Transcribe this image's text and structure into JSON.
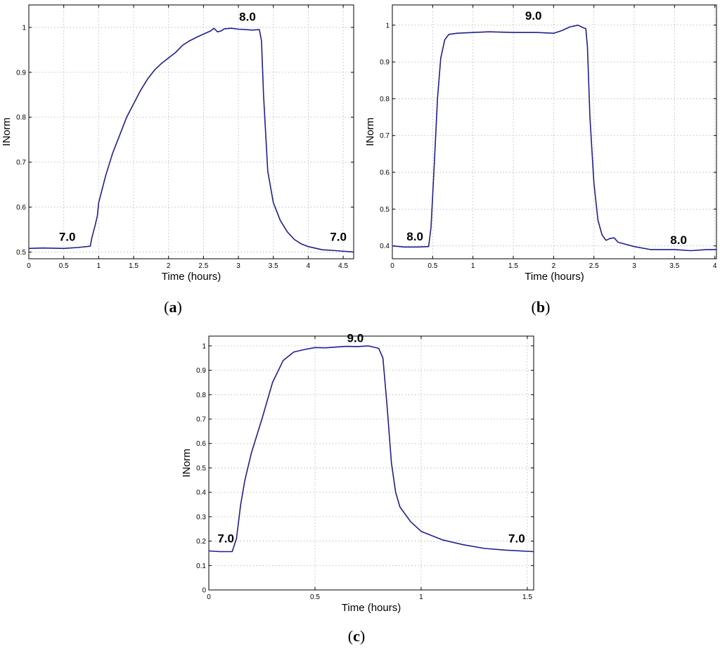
{
  "chart_data": [
    {
      "type": "line",
      "panel_label": "a",
      "xlabel": "Time (hours)",
      "ylabel": "INorm",
      "xlim": [
        0,
        4.65
      ],
      "ylim": [
        0.485,
        1.05
      ],
      "xticks": [
        0,
        0.5,
        1,
        1.5,
        2,
        2.5,
        3,
        3.5,
        4,
        4.5
      ],
      "xtick_labels": [
        "0",
        "0.5",
        "1",
        "1.5",
        "2",
        "2.5",
        "3",
        "3.5",
        "4",
        "4.5"
      ],
      "yticks": [
        0.5,
        0.6,
        0.7,
        0.8,
        0.9,
        1
      ],
      "ytick_labels": [
        "0.5",
        "0.6",
        "0.7",
        "0.8",
        "0.9",
        "1"
      ],
      "grid": true,
      "color": "#1f1f8f",
      "series": [
        {
          "x": [
            0,
            0.2,
            0.5,
            0.7,
            0.88,
            0.9,
            0.95,
            0.98,
            1.0,
            1.05,
            1.1,
            1.2,
            1.3,
            1.4,
            1.5,
            1.6,
            1.7,
            1.8,
            1.9,
            2.0,
            2.1,
            2.2,
            2.3,
            2.4,
            2.5,
            2.6,
            2.65,
            2.7,
            2.75,
            2.8,
            2.9,
            3.0,
            3.1,
            3.2,
            3.3,
            3.33,
            3.36,
            3.42,
            3.5,
            3.6,
            3.7,
            3.8,
            3.9,
            4.0,
            4.2,
            4.4,
            4.65
          ],
          "y": [
            0.508,
            0.509,
            0.508,
            0.51,
            0.513,
            0.53,
            0.56,
            0.58,
            0.61,
            0.64,
            0.67,
            0.72,
            0.76,
            0.8,
            0.83,
            0.86,
            0.885,
            0.905,
            0.92,
            0.932,
            0.944,
            0.96,
            0.97,
            0.978,
            0.985,
            0.992,
            0.998,
            0.99,
            0.992,
            0.997,
            0.998,
            0.996,
            0.995,
            0.994,
            0.995,
            0.97,
            0.85,
            0.68,
            0.61,
            0.57,
            0.545,
            0.528,
            0.518,
            0.512,
            0.505,
            0.503,
            0.5
          ]
        }
      ],
      "annotations": [
        {
          "text": "7.0",
          "x": 0.55,
          "y": 0.525
        },
        {
          "text": "8.0",
          "x": 3.13,
          "y": 1.015
        },
        {
          "text": "7.0",
          "x": 4.43,
          "y": 0.525
        }
      ]
    },
    {
      "type": "line",
      "panel_label": "b",
      "xlabel": "Time (hours)",
      "ylabel": "INorm",
      "xlim": [
        0,
        4.02
      ],
      "ylim": [
        0.365,
        1.055
      ],
      "xticks": [
        0,
        0.5,
        1,
        1.5,
        2,
        2.5,
        3,
        3.5,
        4
      ],
      "xtick_labels": [
        "0",
        "0.5",
        "1",
        "1.5",
        "2",
        "2.5",
        "3",
        "3.5",
        "4"
      ],
      "yticks": [
        0.4,
        0.5,
        0.6,
        0.7,
        0.8,
        0.9,
        1
      ],
      "ytick_labels": [
        "0.4",
        "0.5",
        "0.6",
        "0.7",
        "0.8",
        "0.9",
        "1"
      ],
      "grid": true,
      "color": "#1f1f8f",
      "series": [
        {
          "x": [
            0,
            0.15,
            0.3,
            0.45,
            0.48,
            0.52,
            0.56,
            0.6,
            0.65,
            0.7,
            0.8,
            1.0,
            1.2,
            1.5,
            1.8,
            2.0,
            2.1,
            2.2,
            2.3,
            2.4,
            2.42,
            2.45,
            2.5,
            2.55,
            2.6,
            2.65,
            2.7,
            2.75,
            2.8,
            3.0,
            3.2,
            3.5,
            3.7,
            3.9,
            4.02
          ],
          "y": [
            0.4,
            0.397,
            0.397,
            0.398,
            0.45,
            0.62,
            0.8,
            0.91,
            0.96,
            0.975,
            0.978,
            0.98,
            0.982,
            0.98,
            0.98,
            0.978,
            0.985,
            0.995,
            1.0,
            0.99,
            0.94,
            0.75,
            0.57,
            0.47,
            0.43,
            0.415,
            0.42,
            0.422,
            0.41,
            0.398,
            0.39,
            0.39,
            0.387,
            0.39,
            0.39
          ]
        }
      ],
      "annotations": [
        {
          "text": "8.0",
          "x": 0.28,
          "y": 0.415
        },
        {
          "text": "9.0",
          "x": 1.75,
          "y": 1.015
        },
        {
          "text": "8.0",
          "x": 3.55,
          "y": 0.405
        }
      ]
    },
    {
      "type": "line",
      "panel_label": "c",
      "xlabel": "Time (hours)",
      "ylabel": "INorm",
      "xlim": [
        0,
        1.53
      ],
      "ylim": [
        0,
        1.04
      ],
      "xticks": [
        0,
        0.5,
        1,
        1.5
      ],
      "xtick_labels": [
        "0",
        "0.5",
        "1",
        "1.5"
      ],
      "yticks": [
        0,
        0.1,
        0.2,
        0.3,
        0.4,
        0.5,
        0.6,
        0.7,
        0.8,
        0.9,
        1
      ],
      "ytick_labels": [
        "0",
        "0.1",
        "0.2",
        "0.3",
        "0.4",
        "0.5",
        "0.6",
        "0.7",
        "0.8",
        "0.9",
        "1"
      ],
      "grid": true,
      "color": "#1f1f8f",
      "series": [
        {
          "x": [
            0,
            0.05,
            0.11,
            0.13,
            0.15,
            0.17,
            0.2,
            0.25,
            0.3,
            0.35,
            0.4,
            0.45,
            0.5,
            0.55,
            0.6,
            0.65,
            0.7,
            0.75,
            0.8,
            0.82,
            0.84,
            0.86,
            0.88,
            0.9,
            0.95,
            1.0,
            1.1,
            1.2,
            1.3,
            1.4,
            1.53
          ],
          "y": [
            0.16,
            0.157,
            0.157,
            0.21,
            0.35,
            0.45,
            0.56,
            0.7,
            0.85,
            0.94,
            0.975,
            0.985,
            0.993,
            0.992,
            0.995,
            0.998,
            0.997,
            1.0,
            0.99,
            0.95,
            0.75,
            0.52,
            0.4,
            0.34,
            0.28,
            0.24,
            0.205,
            0.185,
            0.17,
            0.163,
            0.157
          ]
        }
      ],
      "annotations": [
        {
          "text": "7.0",
          "x": 0.08,
          "y": 0.195
        },
        {
          "text": "9.0",
          "x": 0.69,
          "y": 1.015
        },
        {
          "text": "7.0",
          "x": 1.45,
          "y": 0.195
        }
      ]
    }
  ]
}
